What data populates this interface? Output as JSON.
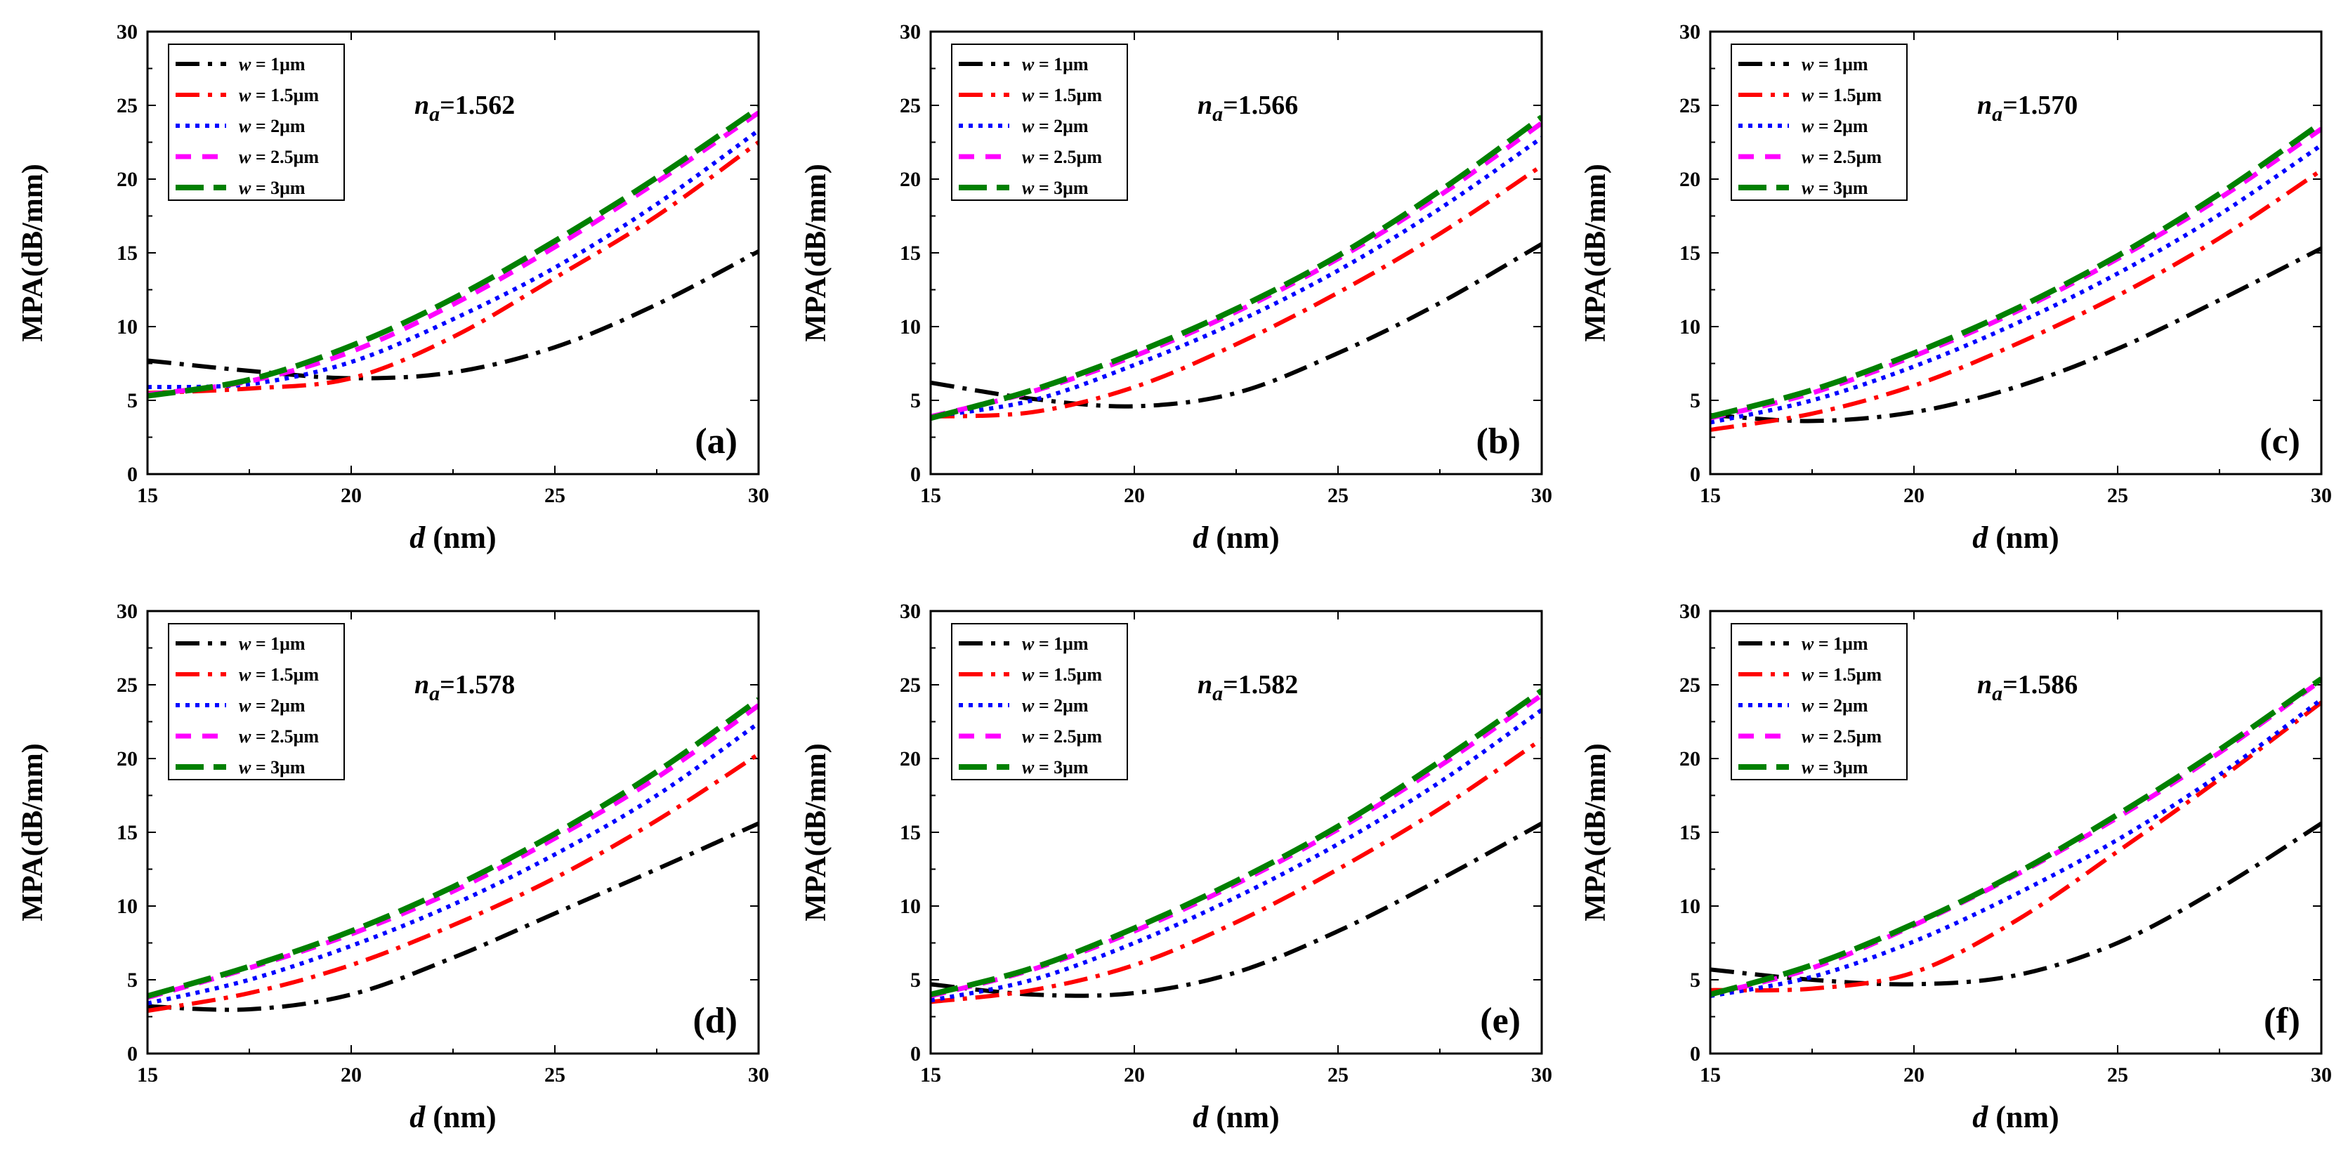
{
  "figure": {
    "xlabel_var": "d",
    "xlabel_unit": " (nm)",
    "ylabel": "MPA(dB/mm)",
    "x_ticks": [
      "15",
      "20",
      "25",
      "30"
    ],
    "y_ticks": [
      "0",
      "5",
      "10",
      "15",
      "20",
      "25",
      "30"
    ]
  },
  "legend": [
    {
      "var": "w",
      "rest": " = 1μm",
      "color": "#000000",
      "style": "dashdot"
    },
    {
      "var": "w",
      "rest": " = 1.5μm",
      "color": "#ff0000",
      "style": "dashdot"
    },
    {
      "var": "w",
      "rest": " = 2μm",
      "color": "#0000ff",
      "style": "dot"
    },
    {
      "var": "w",
      "rest": " = 2.5μm",
      "color": "#ff00ff",
      "style": "dash"
    },
    {
      "var": "w",
      "rest": " = 3μm",
      "color": "#008000",
      "style": "longdash"
    }
  ],
  "chart_data": [
    {
      "type": "line",
      "panel_label": "(a)",
      "annotation": {
        "symbol": "n",
        "sub": "a",
        "value": "=1.562"
      },
      "xlabel": "d (nm)",
      "ylabel": "MPA(dB/mm)",
      "xlim": [
        15,
        30
      ],
      "ylim": [
        0,
        30
      ],
      "legend_position": "top-left",
      "x": [
        15,
        17.5,
        20,
        22.5,
        25,
        27.5,
        30
      ],
      "series": [
        {
          "name": "w = 1μm",
          "values": [
            7.7,
            7.0,
            6.5,
            6.9,
            8.6,
            11.5,
            15.1
          ]
        },
        {
          "name": "w = 1.5μm",
          "values": [
            5.5,
            5.8,
            6.5,
            9.3,
            13.3,
            17.5,
            22.5
          ]
        },
        {
          "name": "w = 2μm",
          "values": [
            5.9,
            6.1,
            7.6,
            10.5,
            14.0,
            18.3,
            23.3
          ]
        },
        {
          "name": "w = 2.5μm",
          "values": [
            5.4,
            6.3,
            8.3,
            11.5,
            15.4,
            19.8,
            24.5
          ]
        },
        {
          "name": "w = 3μm",
          "values": [
            5.3,
            6.4,
            8.7,
            11.9,
            15.8,
            20.1,
            24.8
          ]
        }
      ]
    },
    {
      "type": "line",
      "panel_label": "(b)",
      "annotation": {
        "symbol": "n",
        "sub": "a",
        "value": "=1.566"
      },
      "xlabel": "d (nm)",
      "ylabel": "MPA(dB/mm)",
      "xlim": [
        15,
        30
      ],
      "ylim": [
        0,
        30
      ],
      "legend_position": "top-left",
      "x": [
        15,
        17.5,
        20,
        22.5,
        25,
        27.5,
        30
      ],
      "series": [
        {
          "name": "w = 1μm",
          "values": [
            6.2,
            5.1,
            4.6,
            5.5,
            8.2,
            11.6,
            15.6
          ]
        },
        {
          "name": "w = 1.5μm",
          "values": [
            3.9,
            4.2,
            5.9,
            8.8,
            12.3,
            16.3,
            20.9
          ]
        },
        {
          "name": "w = 2μm",
          "values": [
            3.9,
            5.0,
            7.4,
            10.3,
            13.8,
            18.0,
            22.8
          ]
        },
        {
          "name": "w = 2.5μm",
          "values": [
            3.9,
            5.6,
            8.0,
            11.0,
            14.6,
            18.9,
            23.8
          ]
        },
        {
          "name": "w = 3μm",
          "values": [
            3.8,
            5.7,
            8.2,
            11.2,
            14.8,
            19.2,
            24.2
          ]
        }
      ]
    },
    {
      "type": "line",
      "panel_label": "(c)",
      "annotation": {
        "symbol": "n",
        "sub": "a",
        "value": "=1.570"
      },
      "xlabel": "d (nm)",
      "ylabel": "MPA(dB/mm)",
      "xlim": [
        15,
        30
      ],
      "ylim": [
        0,
        30
      ],
      "legend_position": "top-left",
      "x": [
        15,
        17.5,
        20,
        22.5,
        25,
        27.5,
        30
      ],
      "series": [
        {
          "name": "w = 1μm",
          "values": [
            4.0,
            3.6,
            4.2,
            5.9,
            8.5,
            11.8,
            15.3
          ]
        },
        {
          "name": "w = 1.5μm",
          "values": [
            3.0,
            4.1,
            6.0,
            8.8,
            12.1,
            16.0,
            20.6
          ]
        },
        {
          "name": "w = 2μm",
          "values": [
            3.5,
            5.0,
            7.3,
            10.2,
            13.6,
            17.6,
            22.3
          ]
        },
        {
          "name": "w = 2.5μm",
          "values": [
            3.8,
            5.5,
            8.0,
            11.0,
            14.6,
            18.7,
            23.4
          ]
        },
        {
          "name": "w = 3μm",
          "values": [
            3.9,
            5.7,
            8.2,
            11.2,
            14.8,
            19.0,
            23.8
          ]
        }
      ]
    },
    {
      "type": "line",
      "panel_label": "(d)",
      "annotation": {
        "symbol": "n",
        "sub": "a",
        "value": "=1.578"
      },
      "xlabel": "d (nm)",
      "ylabel": "MPA(dB/mm)",
      "xlim": [
        15,
        30
      ],
      "ylim": [
        0,
        30
      ],
      "legend_position": "top-left",
      "x": [
        15,
        17.5,
        20,
        22.5,
        25,
        27.5,
        30
      ],
      "series": [
        {
          "name": "w = 1μm",
          "values": [
            3.2,
            3.0,
            4.0,
            6.5,
            9.5,
            12.5,
            15.6
          ]
        },
        {
          "name": "w = 1.5μm",
          "values": [
            2.9,
            4.1,
            6.0,
            8.7,
            11.9,
            15.8,
            20.3
          ]
        },
        {
          "name": "w = 2μm",
          "values": [
            3.4,
            5.0,
            7.3,
            10.1,
            13.5,
            17.5,
            22.4
          ]
        },
        {
          "name": "w = 2.5μm",
          "values": [
            3.8,
            5.8,
            8.1,
            11.0,
            14.6,
            18.7,
            23.6
          ]
        },
        {
          "name": "w = 3μm",
          "values": [
            3.9,
            5.9,
            8.3,
            11.3,
            14.9,
            19.1,
            24.0
          ]
        }
      ]
    },
    {
      "type": "line",
      "panel_label": "(e)",
      "annotation": {
        "symbol": "n",
        "sub": "a",
        "value": "=1.582"
      },
      "xlabel": "d (nm)",
      "ylabel": "MPA(dB/mm)",
      "xlim": [
        15,
        30
      ],
      "ylim": [
        0,
        30
      ],
      "legend_position": "top-left",
      "x": [
        15,
        17.5,
        20,
        22.5,
        25,
        27.5,
        30
      ],
      "series": [
        {
          "name": "w = 1μm",
          "values": [
            4.7,
            4.0,
            4.1,
            5.5,
            8.3,
            11.8,
            15.6
          ]
        },
        {
          "name": "w = 1.5μm",
          "values": [
            3.5,
            4.3,
            6.0,
            8.9,
            12.5,
            16.6,
            21.3
          ]
        },
        {
          "name": "w = 2μm",
          "values": [
            3.6,
            5.0,
            7.5,
            10.6,
            14.2,
            18.4,
            23.3
          ]
        },
        {
          "name": "w = 2.5μm",
          "values": [
            3.9,
            5.7,
            8.3,
            11.5,
            15.2,
            19.5,
            24.3
          ]
        },
        {
          "name": "w = 3μm",
          "values": [
            4.0,
            5.8,
            8.5,
            11.7,
            15.4,
            19.8,
            24.6
          ]
        }
      ]
    },
    {
      "type": "line",
      "panel_label": "(f)",
      "annotation": {
        "symbol": "n",
        "sub": "a",
        "value": "=1.586"
      },
      "xlabel": "d (nm)",
      "ylabel": "MPA(dB/mm)",
      "xlim": [
        15,
        30
      ],
      "ylim": [
        0,
        30
      ],
      "legend_position": "top-left",
      "x": [
        15,
        17.5,
        20,
        22.5,
        25,
        27.5,
        30
      ],
      "series": [
        {
          "name": "w = 1μm",
          "values": [
            5.7,
            5.0,
            4.7,
            5.3,
            7.5,
            11.2,
            15.6
          ]
        },
        {
          "name": "w = 1.5μm",
          "values": [
            4.3,
            4.4,
            5.5,
            9.0,
            13.7,
            18.6,
            23.8
          ]
        },
        {
          "name": "w = 2μm",
          "values": [
            3.9,
            5.2,
            7.6,
            10.8,
            14.5,
            18.9,
            24.0
          ]
        },
        {
          "name": "w = 2.5μm",
          "values": [
            4.0,
            5.8,
            8.7,
            12.1,
            16.0,
            20.4,
            25.3
          ]
        },
        {
          "name": "w = 3μm",
          "values": [
            4.0,
            6.0,
            8.8,
            12.2,
            16.2,
            20.6,
            25.4
          ]
        }
      ]
    }
  ]
}
